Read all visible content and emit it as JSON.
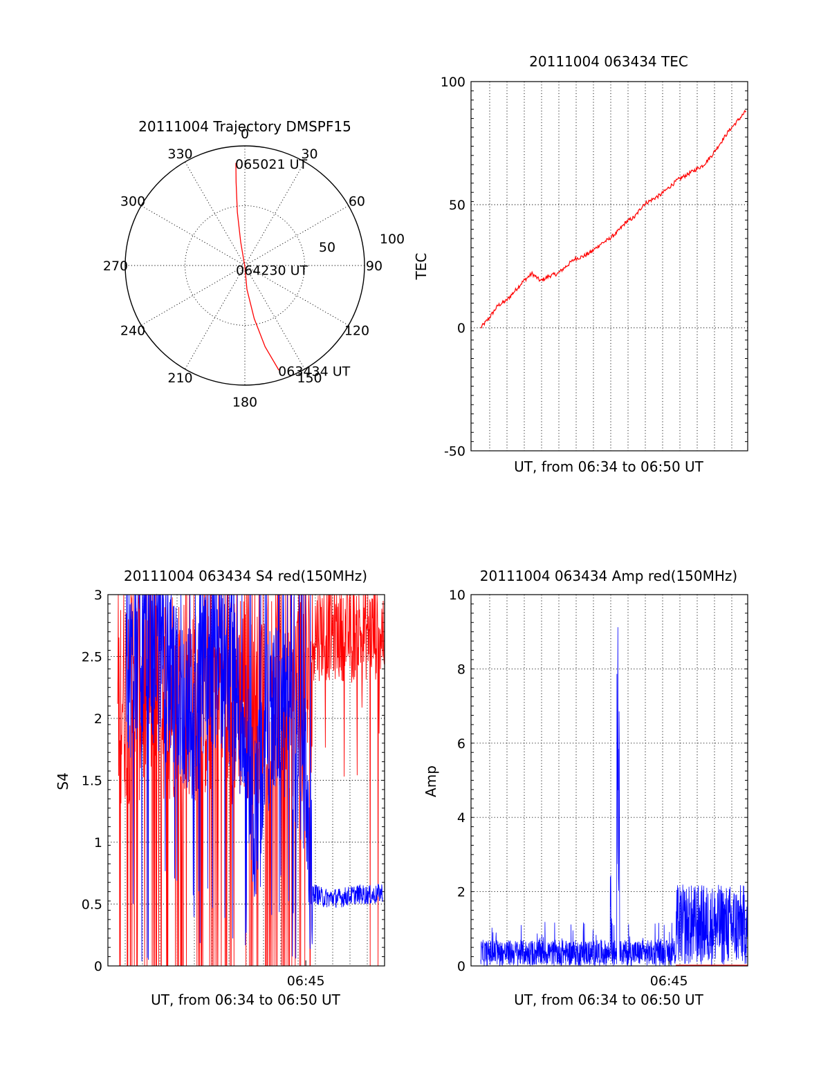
{
  "colors": {
    "red": "#ff0000",
    "blue": "#0000ff",
    "axes": "#000000",
    "background": "#ffffff"
  },
  "chart_data": [
    {
      "id": "trajectory",
      "type": "polar",
      "title": "20111004 Trajectory DMSPF15",
      "azimuth_ticks": [
        "0",
        "30",
        "60",
        "90",
        "120",
        "150",
        "180",
        "210",
        "240",
        "270",
        "300",
        "330"
      ],
      "radial_ticks": [
        "50",
        "100"
      ],
      "radial_max": 100,
      "track": {
        "color": "#ff0000",
        "points": [
          {
            "az": 162,
            "el": 92
          },
          {
            "az": 166,
            "el": 70
          },
          {
            "az": 170,
            "el": 45
          },
          {
            "az": 175,
            "el": 20
          },
          {
            "az": 180,
            "el": 1
          },
          {
            "az": 350,
            "el": 20
          },
          {
            "az": 352,
            "el": 45
          },
          {
            "az": 354,
            "el": 70
          },
          {
            "az": 355,
            "el": 86
          }
        ]
      },
      "annotations": [
        {
          "text": "065021 UT",
          "az": 355,
          "el": 86
        },
        {
          "text": "064230 UT",
          "az": 180,
          "el": 1
        },
        {
          "text": "063434 UT",
          "az": 162,
          "el": 92
        }
      ]
    },
    {
      "id": "tec",
      "type": "line",
      "title": "20111004 063434 TEC",
      "xlabel": "UT, from 06:34 to 06:50 UT",
      "ylabel": "TEC",
      "xlim": [
        "06:34",
        "06:50"
      ],
      "ylim": [
        -50,
        100
      ],
      "yticks": [
        "-50",
        "0",
        "50",
        "100"
      ],
      "xticks": [],
      "grid": true,
      "series": [
        {
          "color": "#ff0000",
          "x_minutes": [
            0.0,
            0.5,
            1.0,
            1.5,
            2.0,
            2.5,
            3.0,
            3.5,
            4.0,
            4.5,
            5.0,
            5.5,
            6.0,
            6.5,
            7.0,
            7.5,
            8.0,
            8.5,
            9.0,
            9.5,
            10.0,
            10.5,
            11.0,
            11.5,
            12.0,
            12.5,
            13.0,
            13.5,
            14.0,
            14.5,
            15.0,
            15.5
          ],
          "x": [
            "06:34:00",
            "06:34:30",
            "06:35:00",
            "06:35:30",
            "06:36:00",
            "06:36:30",
            "06:37:00",
            "06:37:30",
            "06:38:00",
            "06:38:30",
            "06:39:00",
            "06:39:30",
            "06:40:00",
            "06:40:30",
            "06:41:00",
            "06:41:30",
            "06:42:00",
            "06:42:30",
            "06:43:00",
            "06:43:30",
            "06:44:00",
            "06:44:30",
            "06:45:00",
            "06:45:30",
            "06:46:00",
            "06:46:30",
            "06:47:00",
            "06:47:30",
            "06:48:00",
            "06:48:30",
            "06:49:00",
            "06:49:30"
          ],
          "y": [
            0,
            4,
            9,
            11,
            15,
            19,
            22,
            19,
            21,
            22,
            25,
            28,
            29,
            31,
            34,
            36,
            39,
            43,
            45,
            50,
            52,
            54,
            57,
            60,
            62,
            64,
            66,
            70,
            75,
            80,
            84,
            88
          ]
        }
      ]
    },
    {
      "id": "s4",
      "type": "line",
      "title": "20111004 063434 S4 red(150MHz)",
      "xlabel": "UT, from 06:34 to 06:50 UT",
      "ylabel": "S4",
      "xlim": [
        "06:34",
        "06:50"
      ],
      "ylim": [
        0,
        3
      ],
      "yticks": [
        "0",
        "0.5",
        "1",
        "1.5",
        "2",
        "2.5",
        "3"
      ],
      "xticks": [
        {
          "label": "06:45",
          "minute": 11
        }
      ],
      "grid": true,
      "series": [
        {
          "color": "#ff0000",
          "note_values": "dense noisy signal, spikes frequently between 0 and 3",
          "envelope_x_minutes": [
            0.5,
            4,
            7,
            10.5,
            12,
            15.5
          ],
          "envelope_low": [
            0,
            0,
            0,
            0,
            2.5,
            2.5
          ],
          "envelope_high": [
            3,
            3,
            3,
            3,
            3,
            3
          ]
        },
        {
          "color": "#0000ff",
          "x_minutes": [
            0.5,
            1.5,
            2.5,
            3.5,
            4.5,
            5.5,
            6.5,
            7.5,
            8.0,
            9.0,
            10.0,
            11.0,
            11.4,
            12.0,
            13.0,
            14.0,
            15.0,
            15.5
          ],
          "y": [
            2.3,
            2.6,
            2.4,
            2.2,
            2.0,
            2.5,
            2.3,
            1.9,
            1.2,
            2.1,
            2.0,
            1.5,
            0.6,
            0.55,
            0.55,
            0.58,
            0.57,
            0.6
          ]
        }
      ]
    },
    {
      "id": "amp",
      "type": "line",
      "title": "20111004 063434 Amp red(150MHz)",
      "xlabel": "UT, from 06:34 to 06:50 UT",
      "ylabel": "Amp",
      "xlim": [
        "06:34",
        "06:50"
      ],
      "ylim": [
        0,
        10
      ],
      "yticks": [
        "0",
        "2",
        "4",
        "6",
        "8",
        "10"
      ],
      "xticks": [
        {
          "label": "06:45",
          "minute": 11
        }
      ],
      "grid": true,
      "series": [
        {
          "color": "#0000ff",
          "x_minutes": [
            0.5,
            2,
            4,
            6,
            7,
            7.6,
            7.9,
            8.05,
            8.3,
            9,
            10,
            11,
            11.3,
            11.6,
            12,
            13,
            14,
            15,
            15.5
          ],
          "y": [
            0.5,
            0.6,
            0.7,
            0.6,
            0.6,
            2.5,
            1.2,
            9.4,
            0.8,
            0.6,
            0.6,
            0.5,
            0.6,
            2.2,
            2.0,
            2.2,
            2.2,
            2.2,
            2.1
          ]
        }
      ]
    }
  ]
}
